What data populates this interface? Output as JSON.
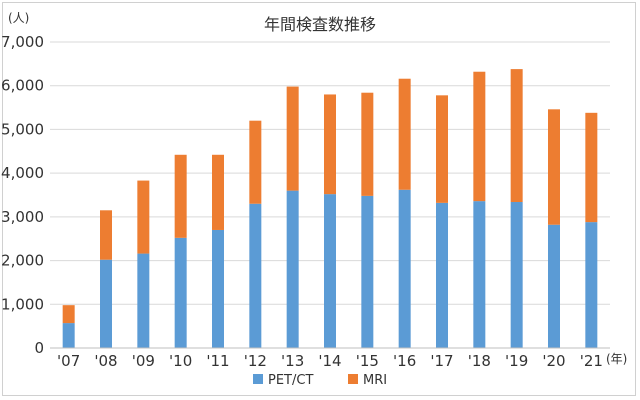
{
  "chart_data": {
    "type": "bar",
    "stacked": true,
    "title": "年間検査数推移",
    "y_unit": "(人)",
    "x_unit": "(年)",
    "categories": [
      "'07",
      "'08",
      "'09",
      "'10",
      "'11",
      "'12",
      "'13",
      "'14",
      "'15",
      "'16",
      "'17",
      "'18",
      "'19",
      "'20",
      "'21"
    ],
    "series": [
      {
        "name": "PET/CT",
        "color": "#5b9bd5",
        "values": [
          570,
          2020,
          2160,
          2520,
          2700,
          3300,
          3600,
          3520,
          3480,
          3620,
          3320,
          3360,
          3340,
          2820,
          2880
        ]
      },
      {
        "name": "MRI",
        "color": "#ed7d31",
        "values": [
          410,
          1130,
          1670,
          1900,
          1720,
          1900,
          2380,
          2280,
          2360,
          2540,
          2460,
          2960,
          3040,
          2640,
          2500
        ]
      }
    ],
    "ylim": [
      0,
      7000
    ],
    "yticks": [
      "0",
      "1,000",
      "2,000",
      "3,000",
      "4,000",
      "5,000",
      "6,000",
      "7,000"
    ],
    "grid": true,
    "legend_position": "bottom"
  }
}
